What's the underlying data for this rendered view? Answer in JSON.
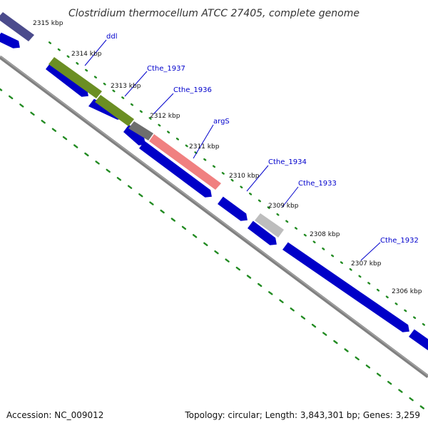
{
  "title": "Clostridium thermocellum ATCC 27405, complete genome",
  "footer": {
    "accession": "Accession: NC_009012",
    "summary": "Topology: circular; Length: 3,843,301 bp; Genes: 3,259"
  },
  "colors": {
    "backbone": "#808080",
    "tick_dots": "#228B22",
    "label_text": "#0000CC",
    "label_line": "#0000CC",
    "forward_strand_gene": "#0000EE"
  },
  "ticks": [
    "2315 kbp",
    "2314 kbp",
    "2313 kbp",
    "2312 kbp",
    "2311 kbp",
    "2310 kbp",
    "2309 kbp",
    "2308 kbp",
    "2307 kbp",
    "2306 kbp"
  ],
  "gene_labels": [
    "ddl",
    "Cthe_1937",
    "Cthe_1936",
    "argS",
    "Cthe_1934",
    "Cthe_1933",
    "Cthe_1932"
  ],
  "feature_colors": {
    "dark_purple_feature": "#4B4B8C",
    "olive_feature": "#6B8E23",
    "dark_gray_feature": "#6E6E6E",
    "pink_feature": "#F08080",
    "light_gray_feature": "#BDBDBD"
  }
}
